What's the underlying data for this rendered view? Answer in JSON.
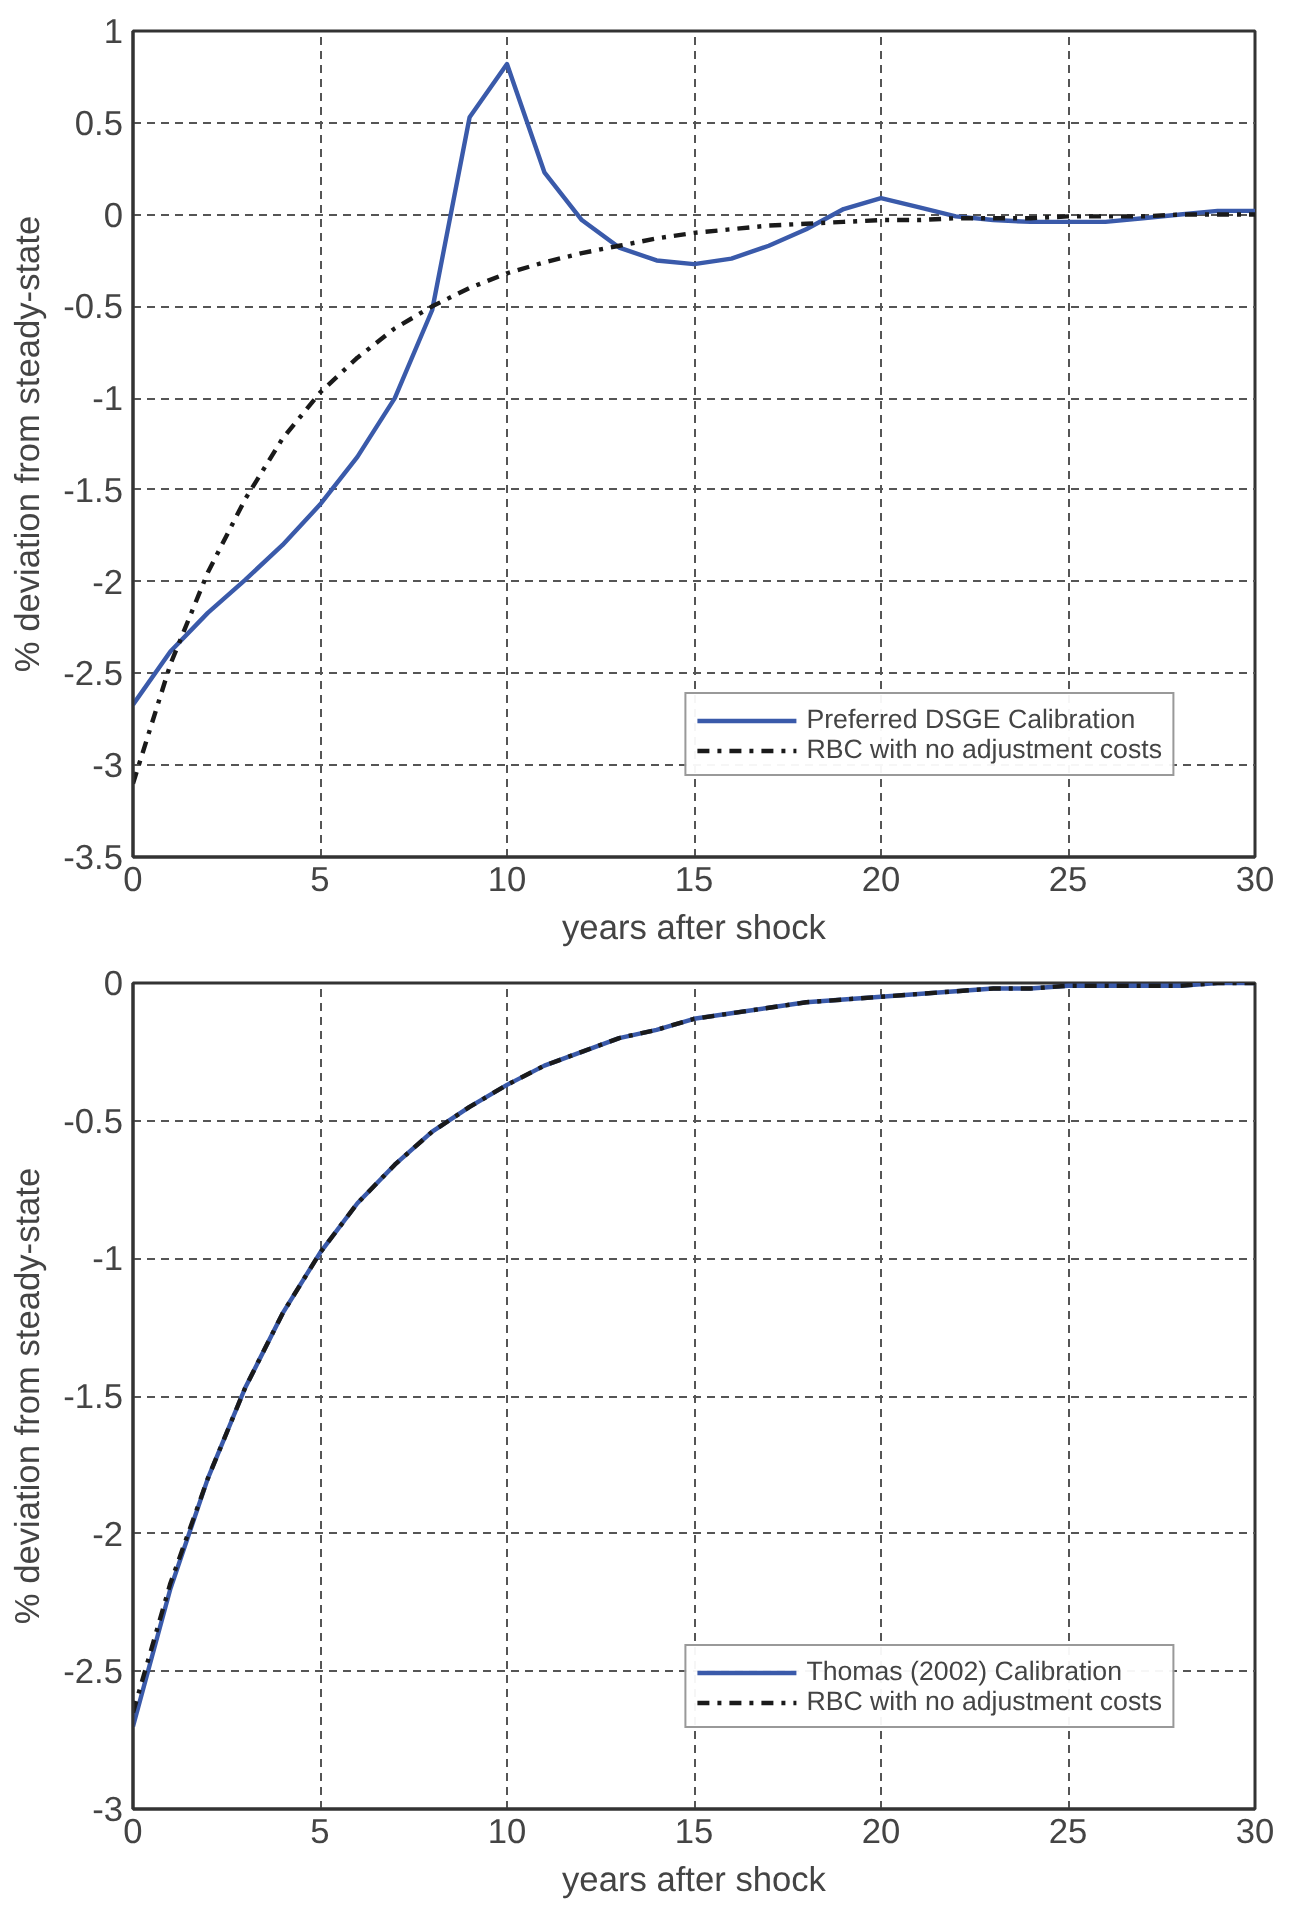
{
  "chart_data": [
    {
      "type": "line",
      "xlabel": "years after shock",
      "ylabel": "% deviation from steady-state",
      "x": [
        0,
        1,
        2,
        3,
        4,
        5,
        6,
        7,
        8,
        9,
        10,
        11,
        12,
        13,
        14,
        15,
        16,
        17,
        18,
        19,
        20,
        21,
        22,
        23,
        24,
        25,
        26,
        27,
        28,
        29,
        30
      ],
      "series": [
        {
          "name": "Preferred DSGE Calibration",
          "color": "#3a5aaa",
          "line_style": "solid",
          "values": [
            -2.67,
            -2.38,
            -2.17,
            -1.99,
            -1.8,
            -1.58,
            -1.32,
            -1.0,
            -0.52,
            0.53,
            0.82,
            0.23,
            -0.03,
            -0.18,
            -0.25,
            -0.27,
            -0.24,
            -0.17,
            -0.08,
            0.03,
            0.09,
            0.04,
            -0.01,
            -0.03,
            -0.04,
            -0.04,
            -0.04,
            -0.02,
            0.0,
            0.02,
            0.02
          ]
        },
        {
          "name": "RBC with no adjustment costs",
          "color": "#1a1a1a",
          "line_style": "dashdot",
          "values": [
            -3.1,
            -2.45,
            -1.95,
            -1.55,
            -1.22,
            -0.97,
            -0.78,
            -0.62,
            -0.5,
            -0.4,
            -0.32,
            -0.26,
            -0.21,
            -0.17,
            -0.13,
            -0.1,
            -0.08,
            -0.06,
            -0.05,
            -0.04,
            -0.03,
            -0.03,
            -0.02,
            -0.02,
            -0.02,
            -0.01,
            -0.01,
            -0.01,
            0.0,
            0.0,
            0.0
          ]
        }
      ],
      "xlim": [
        0,
        30
      ],
      "ylim": [
        -3.5,
        1
      ],
      "xticks": [
        0,
        5,
        10,
        15,
        20,
        25,
        30
      ],
      "yticks": [
        -3.5,
        -3,
        -2.5,
        -2,
        -1.5,
        -1,
        -0.5,
        0,
        0.5,
        1
      ],
      "grid": true,
      "legend": "bottom right"
    },
    {
      "type": "line",
      "xlabel": "years after shock",
      "ylabel": "% deviation from steady-state",
      "x": [
        0,
        1,
        2,
        3,
        4,
        5,
        6,
        7,
        8,
        9,
        10,
        11,
        12,
        13,
        14,
        15,
        16,
        17,
        18,
        19,
        20,
        21,
        22,
        23,
        24,
        25,
        26,
        27,
        28,
        29,
        30
      ],
      "series": [
        {
          "name": "Thomas (2002) Calibration",
          "color": "#3a5aaa",
          "line_style": "solid",
          "values": [
            -2.7,
            -2.2,
            -1.8,
            -1.47,
            -1.2,
            -0.98,
            -0.8,
            -0.66,
            -0.54,
            -0.45,
            -0.37,
            -0.3,
            -0.25,
            -0.2,
            -0.17,
            -0.13,
            -0.11,
            -0.09,
            -0.07,
            -0.06,
            -0.05,
            -0.04,
            -0.03,
            -0.02,
            -0.02,
            -0.01,
            -0.01,
            -0.01,
            -0.01,
            0.0,
            0.0
          ]
        },
        {
          "name": "RBC with no adjustment costs",
          "color": "#1a1a1a",
          "line_style": "dashdot",
          "values": [
            -2.65,
            -2.18,
            -1.8,
            -1.47,
            -1.2,
            -0.98,
            -0.8,
            -0.66,
            -0.54,
            -0.45,
            -0.37,
            -0.3,
            -0.25,
            -0.2,
            -0.17,
            -0.13,
            -0.11,
            -0.09,
            -0.07,
            -0.06,
            -0.05,
            -0.04,
            -0.03,
            -0.02,
            -0.02,
            -0.01,
            -0.01,
            -0.01,
            -0.01,
            0.0,
            0.0
          ]
        }
      ],
      "xlim": [
        0,
        30
      ],
      "ylim": [
        -3,
        0
      ],
      "xticks": [
        0,
        5,
        10,
        15,
        20,
        25,
        30
      ],
      "yticks": [
        -3,
        -2.5,
        -2,
        -1.5,
        -1,
        -0.5,
        0
      ],
      "grid": true,
      "legend": "bottom right"
    }
  ]
}
